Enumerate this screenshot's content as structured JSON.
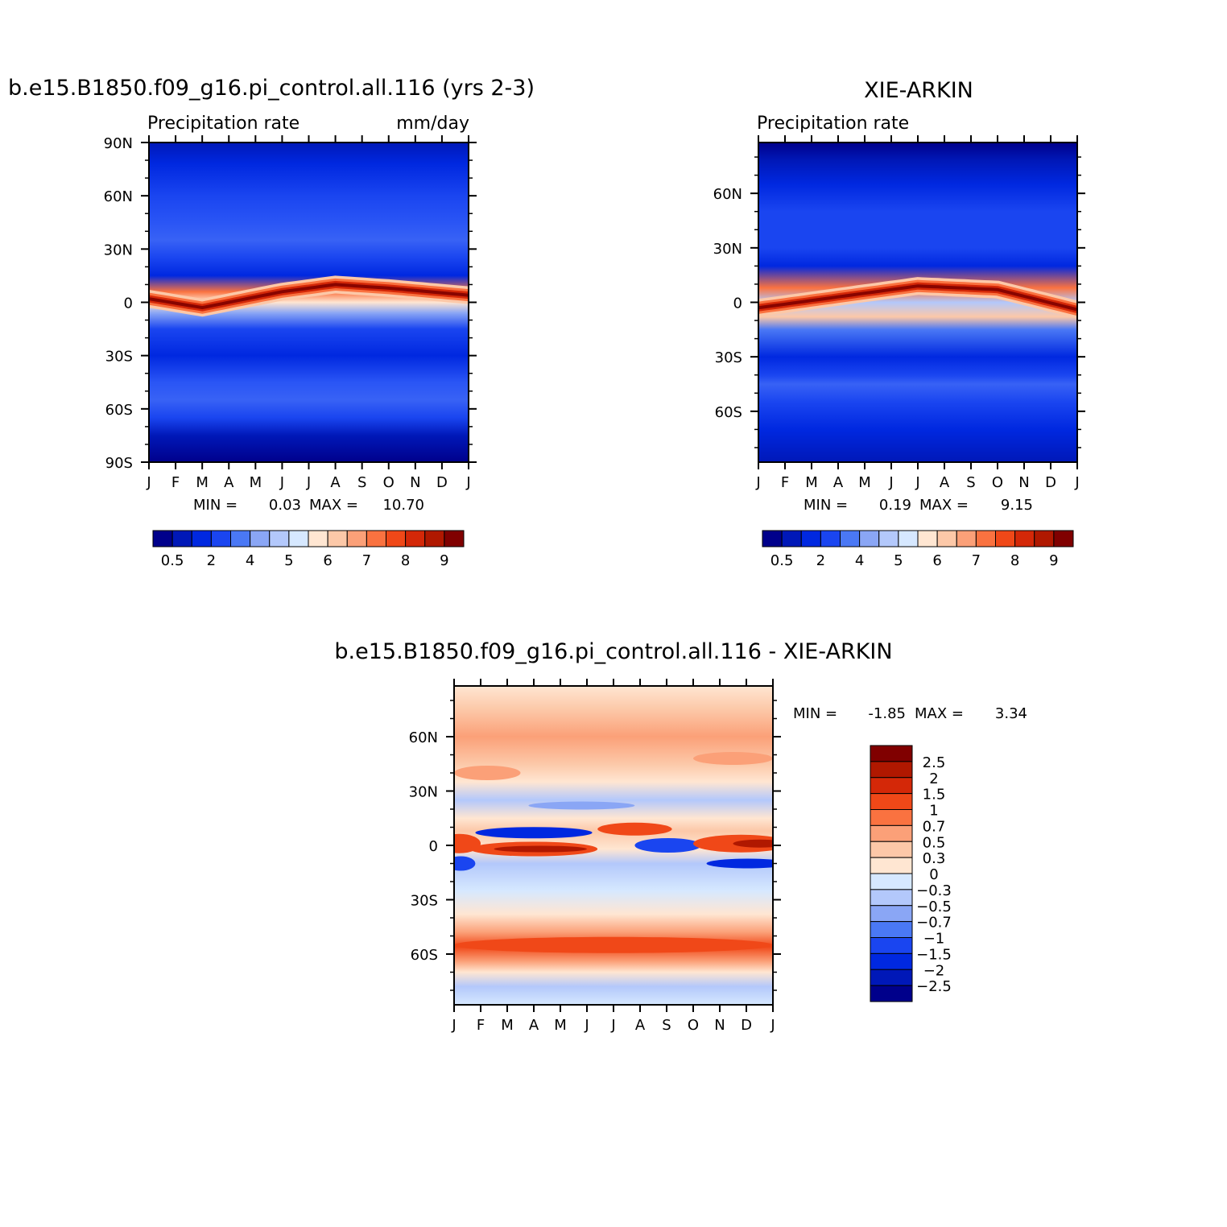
{
  "chart_data": [
    {
      "type": "heatmap",
      "id": "model",
      "title": "b.e15.B1850.f09_g16.pi_control.all.116 (yrs 2-3)",
      "left_string": "Precipitation  rate",
      "right_string": "mm/day",
      "x_ticks": [
        "J",
        "F",
        "M",
        "A",
        "M",
        "J",
        "J",
        "A",
        "S",
        "O",
        "N",
        "D",
        "J"
      ],
      "y_ticks": [
        {
          "lat": 90,
          "label": "90N"
        },
        {
          "lat": 60,
          "label": "60N"
        },
        {
          "lat": 30,
          "label": "30N"
        },
        {
          "lat": 0,
          "label": "0"
        },
        {
          "lat": -30,
          "label": "30S"
        },
        {
          "lat": -60,
          "label": "60S"
        },
        {
          "lat": -90,
          "label": "90S"
        }
      ],
      "ylim": [
        -90,
        90
      ],
      "min_label": "MIN =",
      "min_value": "0.03",
      "max_label": "MAX =",
      "max_value": "10.70",
      "legend_placement": "bottom",
      "colorbar_labels": [
        "0.5",
        "2",
        "4",
        "5",
        "6",
        "7",
        "8",
        "9"
      ],
      "colorbar_colors": [
        "#00008b",
        "#0018b8",
        "#0028e0",
        "#1a45f0",
        "#4a78f5",
        "#8aa6f5",
        "#b3c8fb",
        "#d6e8ff",
        "#ffe6d2",
        "#fcc8a8",
        "#fba078",
        "#fa7240",
        "#f04818",
        "#d42808",
        "#b01800",
        "#800000"
      ],
      "band_colors_by_lat": [
        {
          "lat": 90,
          "color": "#0018b8"
        },
        {
          "lat": 78,
          "color": "#0028e0"
        },
        {
          "lat": 60,
          "color": "#1a45f0"
        },
        {
          "lat": 45,
          "color": "#2a55f5"
        },
        {
          "lat": 35,
          "color": "#3862f5"
        },
        {
          "lat": 25,
          "color": "#1a45f0"
        },
        {
          "lat": 15,
          "color": "#0028e0"
        },
        {
          "lat": 6,
          "color": "#fa7240"
        },
        {
          "lat": 0,
          "color": "#ffe6d2"
        },
        {
          "lat": -6,
          "color": "#8aa6f5"
        },
        {
          "lat": -15,
          "color": "#1a45f0"
        },
        {
          "lat": -30,
          "color": "#0028e0"
        },
        {
          "lat": -45,
          "color": "#2a55f5"
        },
        {
          "lat": -55,
          "color": "#3862f5"
        },
        {
          "lat": -65,
          "color": "#1a45f0"
        },
        {
          "lat": -75,
          "color": "#0018b8"
        },
        {
          "lat": -90,
          "color": "#00008b"
        }
      ],
      "itcz": [
        {
          "month": 0,
          "lat": 2
        },
        {
          "month": 2,
          "lat": -3
        },
        {
          "month": 5,
          "lat": 6
        },
        {
          "month": 7,
          "lat": 10
        },
        {
          "month": 9,
          "lat": 8
        },
        {
          "month": 12,
          "lat": 4
        }
      ]
    },
    {
      "type": "heatmap",
      "id": "obs",
      "title": "XIE-ARKIN",
      "left_string": "Precipitation  rate",
      "x_ticks": [
        "J",
        "F",
        "M",
        "A",
        "M",
        "J",
        "J",
        "A",
        "S",
        "O",
        "N",
        "D",
        "J"
      ],
      "y_ticks": [
        {
          "lat": 60,
          "label": "60N"
        },
        {
          "lat": 30,
          "label": "30N"
        },
        {
          "lat": 0,
          "label": "0"
        },
        {
          "lat": -30,
          "label": "30S"
        },
        {
          "lat": -60,
          "label": "60S"
        }
      ],
      "ylim": [
        -88,
        88
      ],
      "min_label": "MIN =",
      "min_value": "0.19",
      "max_label": "MAX =",
      "max_value": "9.15",
      "legend_placement": "bottom",
      "colorbar_labels": [
        "0.5",
        "2",
        "4",
        "5",
        "6",
        "7",
        "8",
        "9"
      ],
      "colorbar_colors": [
        "#00008b",
        "#0018b8",
        "#0028e0",
        "#1a45f0",
        "#4a78f5",
        "#8aa6f5",
        "#b3c8fb",
        "#d6e8ff",
        "#ffe6d2",
        "#fcc8a8",
        "#fba078",
        "#fa7240",
        "#f04818",
        "#d42808",
        "#b01800",
        "#800000"
      ],
      "band_colors_by_lat": [
        {
          "lat": 88,
          "color": "#00008b"
        },
        {
          "lat": 78,
          "color": "#0018b8"
        },
        {
          "lat": 65,
          "color": "#0028e0"
        },
        {
          "lat": 50,
          "color": "#1a45f0"
        },
        {
          "lat": 30,
          "color": "#1a45f0"
        },
        {
          "lat": 20,
          "color": "#0028e0"
        },
        {
          "lat": 8,
          "color": "#fa7240"
        },
        {
          "lat": 0,
          "color": "#b3c8fb"
        },
        {
          "lat": -8,
          "color": "#fcc8a8"
        },
        {
          "lat": -15,
          "color": "#4a78f5"
        },
        {
          "lat": -30,
          "color": "#0028e0"
        },
        {
          "lat": -40,
          "color": "#1a45f0"
        },
        {
          "lat": -45,
          "color": "#3862f5"
        },
        {
          "lat": -55,
          "color": "#1a45f0"
        },
        {
          "lat": -70,
          "color": "#0028e0"
        },
        {
          "lat": -88,
          "color": "#0018b8"
        }
      ],
      "itcz": [
        {
          "month": 0,
          "lat": -3
        },
        {
          "month": 3,
          "lat": 3
        },
        {
          "month": 6,
          "lat": 9
        },
        {
          "month": 9,
          "lat": 7
        },
        {
          "month": 12,
          "lat": -4
        }
      ]
    },
    {
      "type": "heatmap",
      "id": "difference",
      "title": "b.e15.B1850.f09_g16.pi_control.all.116  -  XIE-ARKIN",
      "x_ticks": [
        "J",
        "F",
        "M",
        "A",
        "M",
        "J",
        "J",
        "A",
        "S",
        "O",
        "N",
        "D",
        "J"
      ],
      "y_ticks": [
        {
          "lat": 60,
          "label": "60N"
        },
        {
          "lat": 30,
          "label": "30N"
        },
        {
          "lat": 0,
          "label": "0"
        },
        {
          "lat": -30,
          "label": "30S"
        },
        {
          "lat": -60,
          "label": "60S"
        }
      ],
      "ylim": [
        -88,
        88
      ],
      "min_label": "MIN =",
      "min_value": "-1.85",
      "max_label": "MAX =",
      "max_value": "3.34",
      "legend_placement": "right",
      "colorbar_labels": [
        "2.5",
        "2",
        "1.5",
        "1",
        "0.7",
        "0.5",
        "0.3",
        "0",
        "-0.3",
        "-0.5",
        "-0.7",
        "-1",
        "-1.5",
        "-2",
        "-2.5"
      ],
      "colorbar_colors": [
        "#800000",
        "#b01800",
        "#d42808",
        "#f04818",
        "#fa7240",
        "#fba078",
        "#fcc8a8",
        "#ffe6d2",
        "#d6e8ff",
        "#b3c8fb",
        "#8aa6f5",
        "#4a78f5",
        "#1a45f0",
        "#0028e0",
        "#0018b8",
        "#00008b"
      ],
      "band_colors_by_lat": [
        {
          "lat": 88,
          "color": "#ffe6d2"
        },
        {
          "lat": 75,
          "color": "#fcc8a8"
        },
        {
          "lat": 60,
          "color": "#fba078"
        },
        {
          "lat": 45,
          "color": "#fcc8a8"
        },
        {
          "lat": 35,
          "color": "#ffe6d2"
        },
        {
          "lat": 25,
          "color": "#b3c8fb"
        },
        {
          "lat": 15,
          "color": "#ffe6d2"
        },
        {
          "lat": 8,
          "color": "#fcc8a8"
        },
        {
          "lat": -2,
          "color": "#ffe6d2"
        },
        {
          "lat": -10,
          "color": "#b3c8fb"
        },
        {
          "lat": -25,
          "color": "#d6e8ff"
        },
        {
          "lat": -38,
          "color": "#ffe6d2"
        },
        {
          "lat": -48,
          "color": "#fba078"
        },
        {
          "lat": -56,
          "color": "#f04818"
        },
        {
          "lat": -64,
          "color": "#fba078"
        },
        {
          "lat": -70,
          "color": "#ffe6d2"
        },
        {
          "lat": -78,
          "color": "#b3c8fb"
        },
        {
          "lat": -88,
          "color": "#d6e8ff"
        }
      ]
    }
  ]
}
